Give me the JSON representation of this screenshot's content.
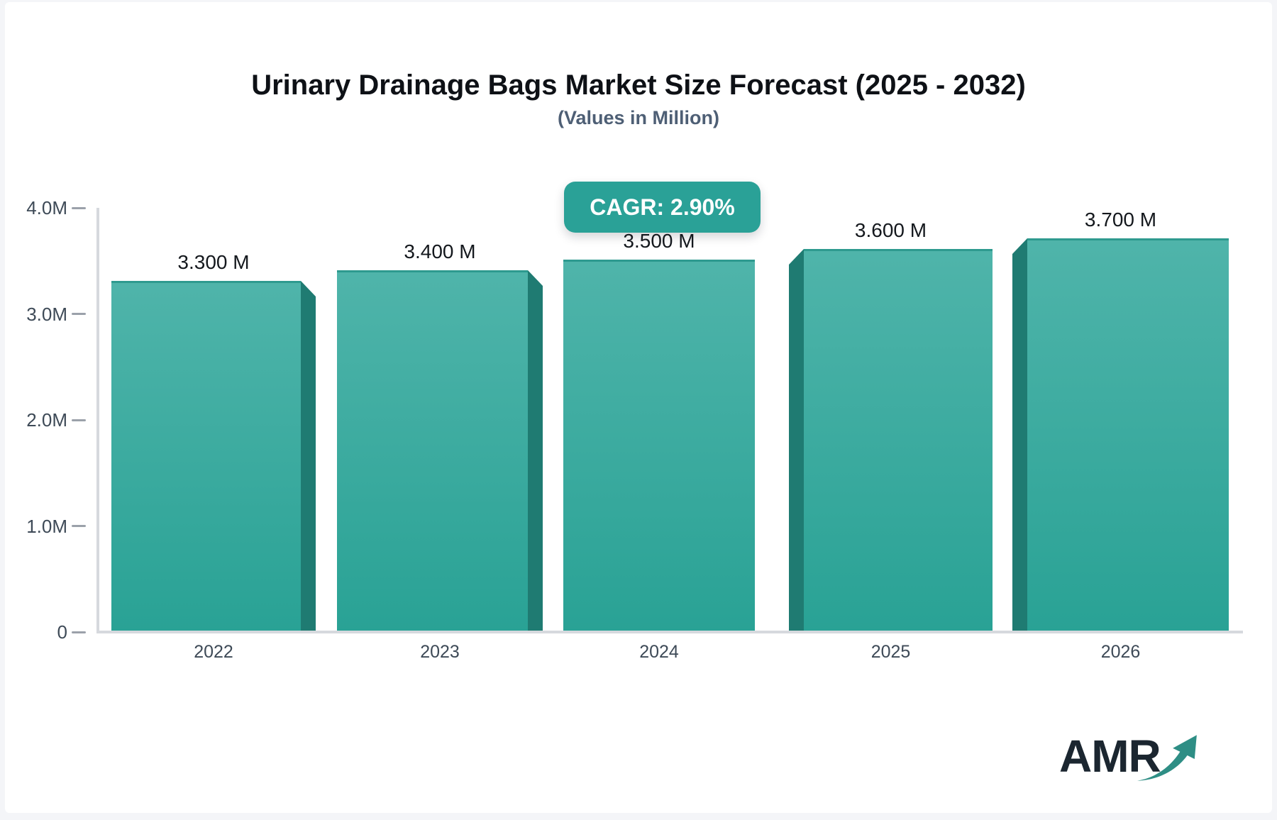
{
  "title": "Urinary Drainage Bags Market Size Forecast (2025 - 2032)",
  "subtitle": "(Values in Million)",
  "cagr_badge": "CAGR: 2.90%",
  "logo": {
    "text": "AMR",
    "arrow_icon": "trend-up-arrow"
  },
  "colors": {
    "bar_face_top": "#4fb4aa",
    "bar_face_bottom": "#29a295",
    "bar_side_shade": "#1f7b72",
    "bar_top_edge": "#2e9a8f",
    "badge_bg": "#2aa197",
    "badge_text": "#ffffff",
    "axis_line": "#d6d9de",
    "tick_text": "#3e4a57",
    "value_text": "#14181d",
    "title_text": "#0e1116",
    "subtitle_text": "#4e5f75",
    "logo_text": "#1b2630",
    "logo_arrow": "#2e8e85"
  },
  "chart_data": {
    "type": "bar",
    "categories": [
      "2022",
      "2023",
      "2024",
      "2025",
      "2026"
    ],
    "values": [
      3.3,
      3.4,
      3.5,
      3.6,
      3.7
    ],
    "bar_labels": [
      "3.300 M",
      "3.400 M",
      "3.500 M",
      "3.600 M",
      "3.700 M"
    ],
    "title": "Urinary Drainage Bags Market Size Forecast (2025 - 2032)",
    "subtitle": "(Values in Million)",
    "xlabel": "",
    "ylabel": "",
    "ylim": [
      0,
      4
    ],
    "ytick_labels": [
      "4.0M",
      "3.0M",
      "2.0M",
      "1.0M",
      "0"
    ],
    "ytick_values": [
      4,
      3,
      2,
      1,
      0
    ],
    "grid": false,
    "legend": false,
    "annotation": "CAGR: 2.90%"
  }
}
